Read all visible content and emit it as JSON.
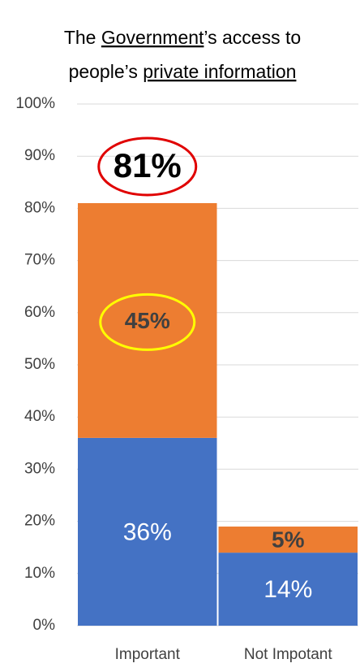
{
  "chart_data": {
    "type": "stacked_bar",
    "title_parts": [
      "The ",
      "Government",
      "’s access to",
      "people’s ",
      "private information"
    ],
    "categories": [
      "Important",
      "Not Impotant"
    ],
    "series": [
      {
        "color": "#4472c4",
        "values": [
          36,
          14
        ],
        "value_labels": [
          "36%",
          "14%"
        ]
      },
      {
        "color": "#ed7d31",
        "values": [
          45,
          5
        ],
        "value_labels": [
          "45%",
          "5%"
        ]
      }
    ],
    "annotation": "81%",
    "ylim": [
      0,
      100
    ],
    "yticks": [
      {
        "value": 0,
        "label": "0%"
      },
      {
        "value": 10,
        "label": "10%"
      },
      {
        "value": 20,
        "label": "20%"
      },
      {
        "value": 30,
        "label": "30%"
      },
      {
        "value": 40,
        "label": "40%"
      },
      {
        "value": 50,
        "label": "50%"
      },
      {
        "value": 60,
        "label": "60%"
      },
      {
        "value": 70,
        "label": "70%"
      },
      {
        "value": 80,
        "label": "80%"
      },
      {
        "value": 90,
        "label": "90%"
      },
      {
        "value": 100,
        "label": "100%"
      }
    ],
    "grid": true
  }
}
